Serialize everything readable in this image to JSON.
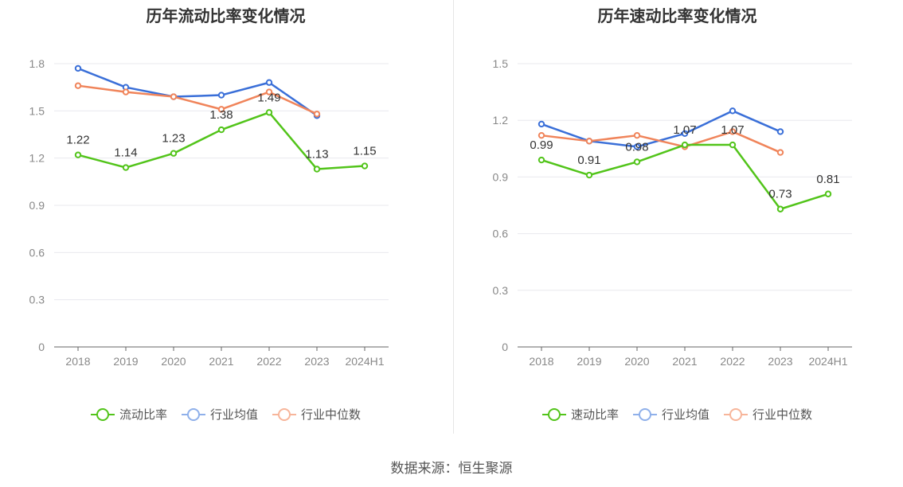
{
  "source": "数据来源：恒生聚源",
  "chart_data": [
    {
      "type": "line",
      "title": "历年流动比率变化情况",
      "categories": [
        "2018",
        "2019",
        "2020",
        "2021",
        "2022",
        "2023",
        "2024H1"
      ],
      "ylim": [
        0,
        1.8
      ],
      "yticks": [
        "0",
        "0.3",
        "0.6",
        "0.9",
        "1.2",
        "1.5",
        "1.8"
      ],
      "grid": true,
      "legend_position": "bottom",
      "series": [
        {
          "name": "流动比率",
          "color": "#52c41a",
          "values": [
            1.22,
            1.14,
            1.23,
            1.38,
            1.49,
            1.13,
            1.15
          ],
          "labels": [
            "1.22",
            "1.14",
            "1.23",
            "1.38",
            "1.49",
            "1.13",
            "1.15"
          ]
        },
        {
          "name": "行业均值",
          "color": "#3a6fd8",
          "values": [
            1.77,
            1.65,
            1.59,
            1.6,
            1.68,
            1.47,
            null
          ]
        },
        {
          "name": "行业中位数",
          "color": "#f0845a",
          "values": [
            1.66,
            1.62,
            1.59,
            1.51,
            1.62,
            1.48,
            null
          ]
        }
      ]
    },
    {
      "type": "line",
      "title": "历年速动比率变化情况",
      "categories": [
        "2018",
        "2019",
        "2020",
        "2021",
        "2022",
        "2023",
        "2024H1"
      ],
      "ylim": [
        0,
        1.5
      ],
      "yticks": [
        "0",
        "0.3",
        "0.6",
        "0.9",
        "1.2",
        "1.5"
      ],
      "grid": true,
      "legend_position": "bottom",
      "series": [
        {
          "name": "速动比率",
          "color": "#52c41a",
          "values": [
            0.99,
            0.91,
            0.98,
            1.07,
            1.07,
            0.73,
            0.81
          ],
          "labels": [
            "0.99",
            "0.91",
            "0.98",
            "1.07",
            "1.07",
            "0.73",
            "0.81"
          ]
        },
        {
          "name": "行业均值",
          "color": "#3a6fd8",
          "values": [
            1.18,
            1.09,
            1.06,
            1.13,
            1.25,
            1.14,
            null
          ]
        },
        {
          "name": "行业中位数",
          "color": "#f0845a",
          "values": [
            1.12,
            1.09,
            1.12,
            1.06,
            1.14,
            1.03,
            null
          ]
        }
      ]
    }
  ]
}
